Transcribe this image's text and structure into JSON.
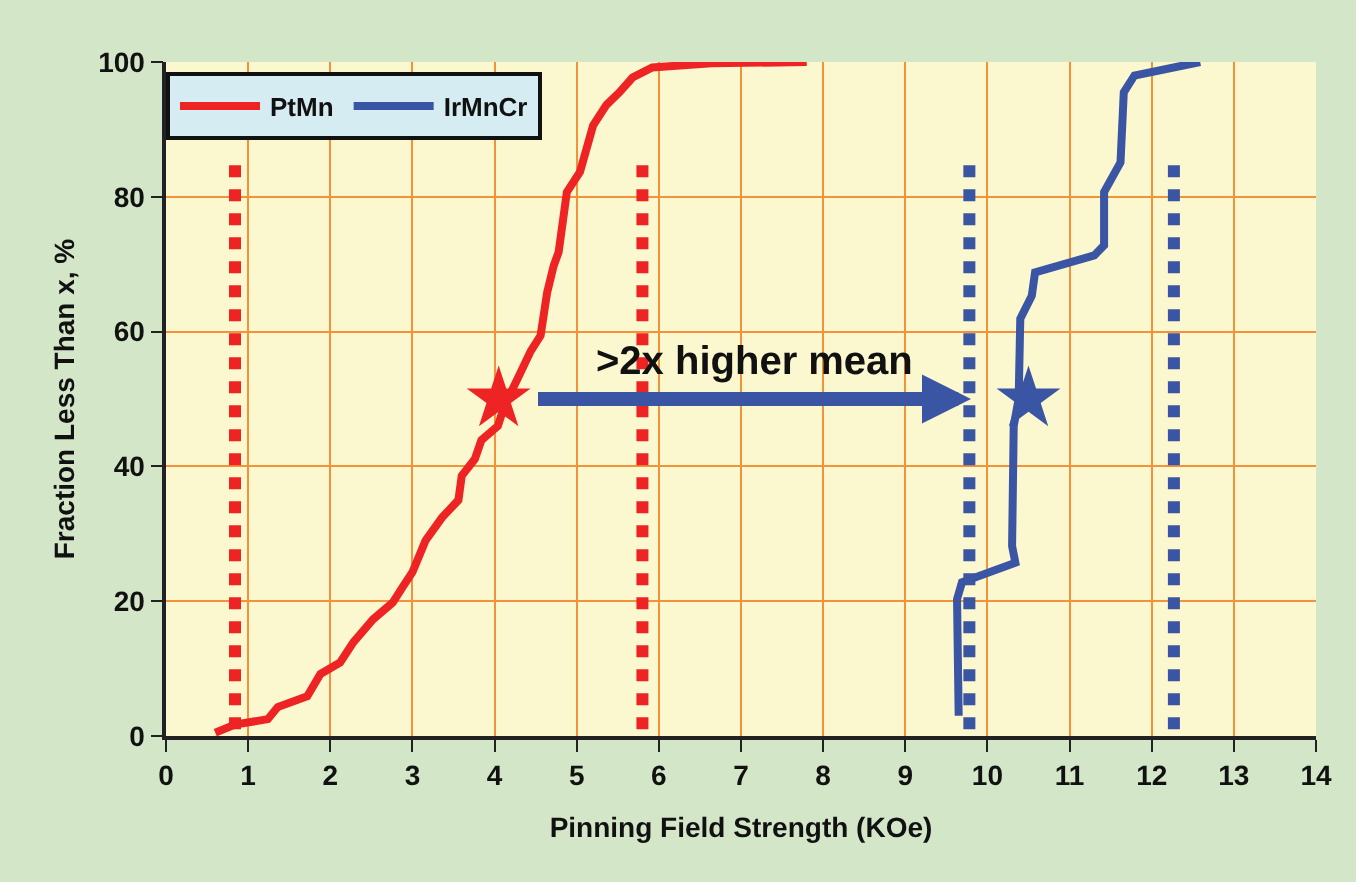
{
  "chart_data": {
    "type": "line",
    "xlabel": "Pinning Field Strength (KOe)",
    "ylabel": "Fraction Less Than x, %",
    "xlim": [
      0,
      14
    ],
    "xticks": [
      0,
      1,
      2,
      3,
      4,
      5,
      6,
      7,
      8,
      9,
      10,
      11,
      12,
      13,
      14
    ],
    "ylim": [
      0,
      100
    ],
    "yticks": [
      0,
      20,
      40,
      60,
      80,
      100
    ],
    "grid": true,
    "legend": "top left",
    "marker": "none",
    "line_style": "solid",
    "series": [
      {
        "name": "PtMn",
        "color": "#ee2424",
        "x": [
          0.6,
          0.84,
          1.24,
          1.36,
          1.72,
          1.88,
          2.12,
          2.28,
          2.52,
          2.76,
          2.88,
          3.0,
          3.16,
          3.36,
          3.56,
          3.6,
          3.76,
          3.84,
          4.04,
          4.12,
          4.28,
          4.44,
          4.56,
          4.64,
          4.72,
          4.78,
          4.88,
          5.04,
          5.2,
          5.36,
          5.52,
          5.68,
          5.92,
          6.64,
          7.8
        ],
        "values": [
          0.5,
          1.7,
          2.5,
          4.3,
          5.9,
          9.2,
          10.9,
          13.9,
          17.3,
          19.8,
          22.1,
          24.3,
          29,
          32.4,
          35,
          38.6,
          41.1,
          43.9,
          46,
          49,
          53,
          57.1,
          59.4,
          65.8,
          69.8,
          71.8,
          80.7,
          83.7,
          90.6,
          93.6,
          95.5,
          97.7,
          99.2,
          99.8,
          100
        ]
      },
      {
        "name": "IrMnCr",
        "color": "#3a55a3",
        "x": [
          9.65,
          9.63,
          9.69,
          10.34,
          10.3,
          10.32,
          10.38,
          10.4,
          10.54,
          10.58,
          11.3,
          11.42,
          11.42,
          11.62,
          11.66,
          11.79,
          12.59
        ],
        "values": [
          3,
          20.3,
          22.8,
          25.7,
          28.2,
          46,
          50,
          61.9,
          65.3,
          68.8,
          71.3,
          72.8,
          80.7,
          85.1,
          95.5,
          98,
          100
        ]
      },
      {
        "color": "#ee2424",
        "line_style": "dotted",
        "x": [
          0.84,
          0.84
        ],
        "values": [
          1,
          85
        ]
      },
      {
        "color": "#ee2424",
        "line_style": "dotted",
        "x": [
          5.8,
          5.8
        ],
        "values": [
          1,
          85
        ]
      },
      {
        "color": "#3a55a3",
        "line_style": "dotted",
        "x": [
          9.78,
          9.78
        ],
        "values": [
          1,
          85
        ]
      },
      {
        "color": "#3a55a3",
        "line_style": "dotted",
        "x": [
          12.27,
          12.27
        ],
        "values": [
          1,
          85
        ]
      },
      {
        "type": "scatter",
        "marker": "star",
        "color": "#ee2424",
        "x": [
          4.05
        ],
        "values": [
          50
        ]
      },
      {
        "type": "scatter",
        "marker": "star",
        "color": "#3a55a3",
        "x": [
          10.5
        ],
        "values": [
          50
        ]
      }
    ],
    "annotations": [
      {
        "text": ">2x higher mean",
        "x": 9.8,
        "y": 50
      }
    ]
  }
}
